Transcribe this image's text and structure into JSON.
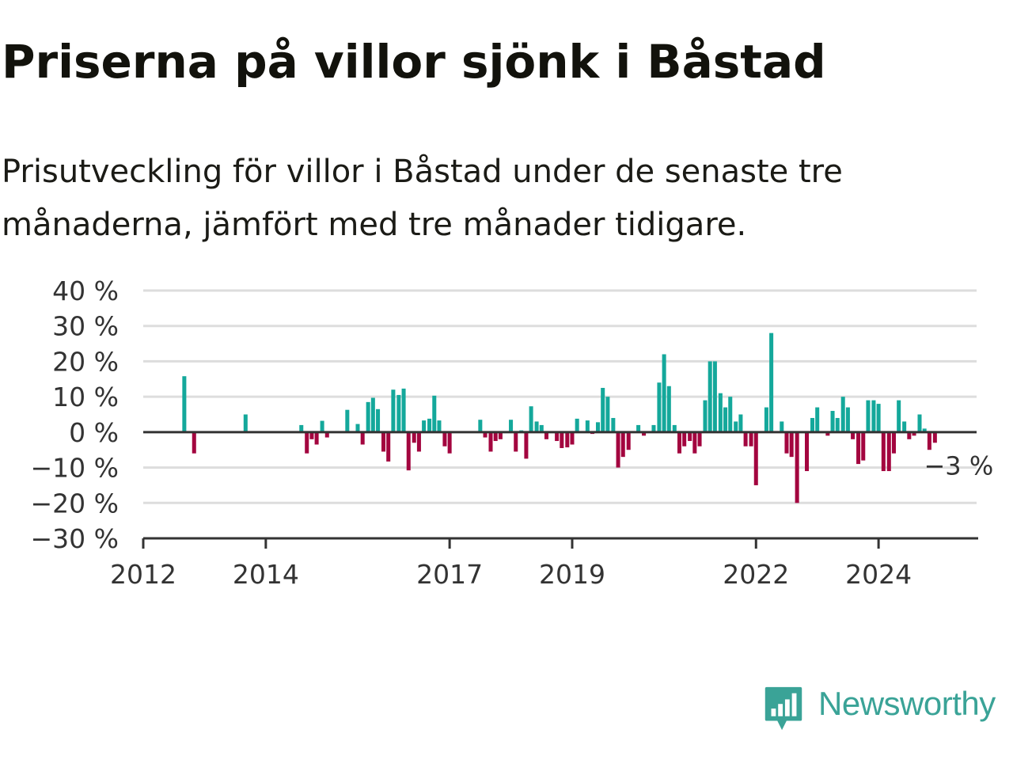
{
  "title": "Priserna på villor sjönk i Båstad",
  "subtitle": "Prisutveckling för villor i Båstad under de senaste tre månaderna, jämfört med tre månader tidigare.",
  "logo": {
    "text": "Newsworthy",
    "icon": "newsworthy-logo-icon",
    "color": "#3aa397"
  },
  "chart_data": {
    "type": "bar",
    "ylim": [
      -30,
      40
    ],
    "yticks": [
      40,
      30,
      20,
      10,
      0,
      -10,
      -20,
      -30
    ],
    "ytick_labels": [
      "40 %",
      "30 %",
      "20 %",
      "10 %",
      "0 %",
      "−10 %",
      "−20 %",
      "−30 %"
    ],
    "xlim": [
      2012.0,
      2025.6
    ],
    "xticks": [
      2012,
      2014,
      2017,
      2019,
      2022,
      2024
    ],
    "xtick_labels": [
      "2012",
      "2014",
      "2017",
      "2019",
      "2022",
      "2024"
    ],
    "colors": {
      "positive": "#14a89b",
      "negative": "#a3053f",
      "grid": "#dddddd",
      "axis": "#333333"
    },
    "grid": true,
    "last_label": "−3 %",
    "points": [
      {
        "x": 2012.67,
        "y": 15.8
      },
      {
        "x": 2012.83,
        "y": -6.0
      },
      {
        "x": 2013.67,
        "y": 5.0
      },
      {
        "x": 2014.58,
        "y": 2.0
      },
      {
        "x": 2014.67,
        "y": -6.0
      },
      {
        "x": 2014.75,
        "y": -2.0
      },
      {
        "x": 2014.83,
        "y": -3.5
      },
      {
        "x": 2014.92,
        "y": 3.2
      },
      {
        "x": 2015.0,
        "y": -1.5
      },
      {
        "x": 2015.33,
        "y": 6.3
      },
      {
        "x": 2015.5,
        "y": 2.3
      },
      {
        "x": 2015.58,
        "y": -3.5
      },
      {
        "x": 2015.67,
        "y": 8.5
      },
      {
        "x": 2015.75,
        "y": 9.7
      },
      {
        "x": 2015.83,
        "y": 6.5
      },
      {
        "x": 2015.92,
        "y": -5.5
      },
      {
        "x": 2016.0,
        "y": -8.3
      },
      {
        "x": 2016.08,
        "y": 12.0
      },
      {
        "x": 2016.17,
        "y": 10.5
      },
      {
        "x": 2016.25,
        "y": 12.3
      },
      {
        "x": 2016.33,
        "y": -10.8
      },
      {
        "x": 2016.42,
        "y": -3.0
      },
      {
        "x": 2016.5,
        "y": -5.5
      },
      {
        "x": 2016.58,
        "y": 3.3
      },
      {
        "x": 2016.67,
        "y": 3.8
      },
      {
        "x": 2016.75,
        "y": 10.3
      },
      {
        "x": 2016.83,
        "y": 3.3
      },
      {
        "x": 2016.92,
        "y": -4.0
      },
      {
        "x": 2017.0,
        "y": -6.0
      },
      {
        "x": 2017.5,
        "y": 3.5
      },
      {
        "x": 2017.58,
        "y": -1.5
      },
      {
        "x": 2017.67,
        "y": -5.5
      },
      {
        "x": 2017.75,
        "y": -2.5
      },
      {
        "x": 2017.83,
        "y": -2.0
      },
      {
        "x": 2018.0,
        "y": 3.5
      },
      {
        "x": 2018.08,
        "y": -5.5
      },
      {
        "x": 2018.17,
        "y": 0.5
      },
      {
        "x": 2018.25,
        "y": -7.5
      },
      {
        "x": 2018.33,
        "y": 7.3
      },
      {
        "x": 2018.42,
        "y": 3.0
      },
      {
        "x": 2018.5,
        "y": 2.0
      },
      {
        "x": 2018.58,
        "y": -2.0
      },
      {
        "x": 2018.75,
        "y": -2.5
      },
      {
        "x": 2018.83,
        "y": -4.5
      },
      {
        "x": 2018.92,
        "y": -4.3
      },
      {
        "x": 2019.0,
        "y": -3.5
      },
      {
        "x": 2019.08,
        "y": 3.8
      },
      {
        "x": 2019.25,
        "y": 3.3
      },
      {
        "x": 2019.33,
        "y": -0.5
      },
      {
        "x": 2019.42,
        "y": 2.8
      },
      {
        "x": 2019.5,
        "y": 12.5
      },
      {
        "x": 2019.58,
        "y": 10.0
      },
      {
        "x": 2019.67,
        "y": 4.0
      },
      {
        "x": 2019.75,
        "y": -10.0
      },
      {
        "x": 2019.83,
        "y": -7.0
      },
      {
        "x": 2019.92,
        "y": -5.0
      },
      {
        "x": 2020.08,
        "y": 2.0
      },
      {
        "x": 2020.17,
        "y": -1.0
      },
      {
        "x": 2020.33,
        "y": 2.0
      },
      {
        "x": 2020.42,
        "y": 14.0
      },
      {
        "x": 2020.5,
        "y": 22.0
      },
      {
        "x": 2020.58,
        "y": 13.0
      },
      {
        "x": 2020.67,
        "y": 2.0
      },
      {
        "x": 2020.75,
        "y": -6.0
      },
      {
        "x": 2020.83,
        "y": -4.0
      },
      {
        "x": 2020.92,
        "y": -2.5
      },
      {
        "x": 2021.0,
        "y": -6.0
      },
      {
        "x": 2021.08,
        "y": -4.0
      },
      {
        "x": 2021.17,
        "y": 9.0
      },
      {
        "x": 2021.25,
        "y": 20.0
      },
      {
        "x": 2021.33,
        "y": 20.0
      },
      {
        "x": 2021.42,
        "y": 11.0
      },
      {
        "x": 2021.5,
        "y": 7.0
      },
      {
        "x": 2021.58,
        "y": 10.0
      },
      {
        "x": 2021.67,
        "y": 3.0
      },
      {
        "x": 2021.75,
        "y": 5.0
      },
      {
        "x": 2021.83,
        "y": -4.0
      },
      {
        "x": 2021.92,
        "y": -4.0
      },
      {
        "x": 2022.0,
        "y": -15.0
      },
      {
        "x": 2022.17,
        "y": 7.0
      },
      {
        "x": 2022.25,
        "y": 28.0
      },
      {
        "x": 2022.42,
        "y": 3.0
      },
      {
        "x": 2022.5,
        "y": -6.0
      },
      {
        "x": 2022.58,
        "y": -7.0
      },
      {
        "x": 2022.67,
        "y": -20.0
      },
      {
        "x": 2022.83,
        "y": -11.0
      },
      {
        "x": 2022.92,
        "y": 4.0
      },
      {
        "x": 2023.0,
        "y": 7.0
      },
      {
        "x": 2023.17,
        "y": -1.0
      },
      {
        "x": 2023.25,
        "y": 6.0
      },
      {
        "x": 2023.33,
        "y": 4.0
      },
      {
        "x": 2023.42,
        "y": 10.0
      },
      {
        "x": 2023.5,
        "y": 7.0
      },
      {
        "x": 2023.58,
        "y": -2.0
      },
      {
        "x": 2023.67,
        "y": -9.0
      },
      {
        "x": 2023.75,
        "y": -8.0
      },
      {
        "x": 2023.83,
        "y": 9.0
      },
      {
        "x": 2023.92,
        "y": 9.0
      },
      {
        "x": 2024.0,
        "y": 8.0
      },
      {
        "x": 2024.08,
        "y": -11.0
      },
      {
        "x": 2024.17,
        "y": -11.0
      },
      {
        "x": 2024.25,
        "y": -6.0
      },
      {
        "x": 2024.33,
        "y": 9.0
      },
      {
        "x": 2024.42,
        "y": 3.0
      },
      {
        "x": 2024.5,
        "y": -2.0
      },
      {
        "x": 2024.58,
        "y": -1.0
      },
      {
        "x": 2024.67,
        "y": 5.0
      },
      {
        "x": 2024.75,
        "y": 1.0
      },
      {
        "x": 2024.83,
        "y": -5.0
      },
      {
        "x": 2024.92,
        "y": -3.0
      }
    ]
  }
}
